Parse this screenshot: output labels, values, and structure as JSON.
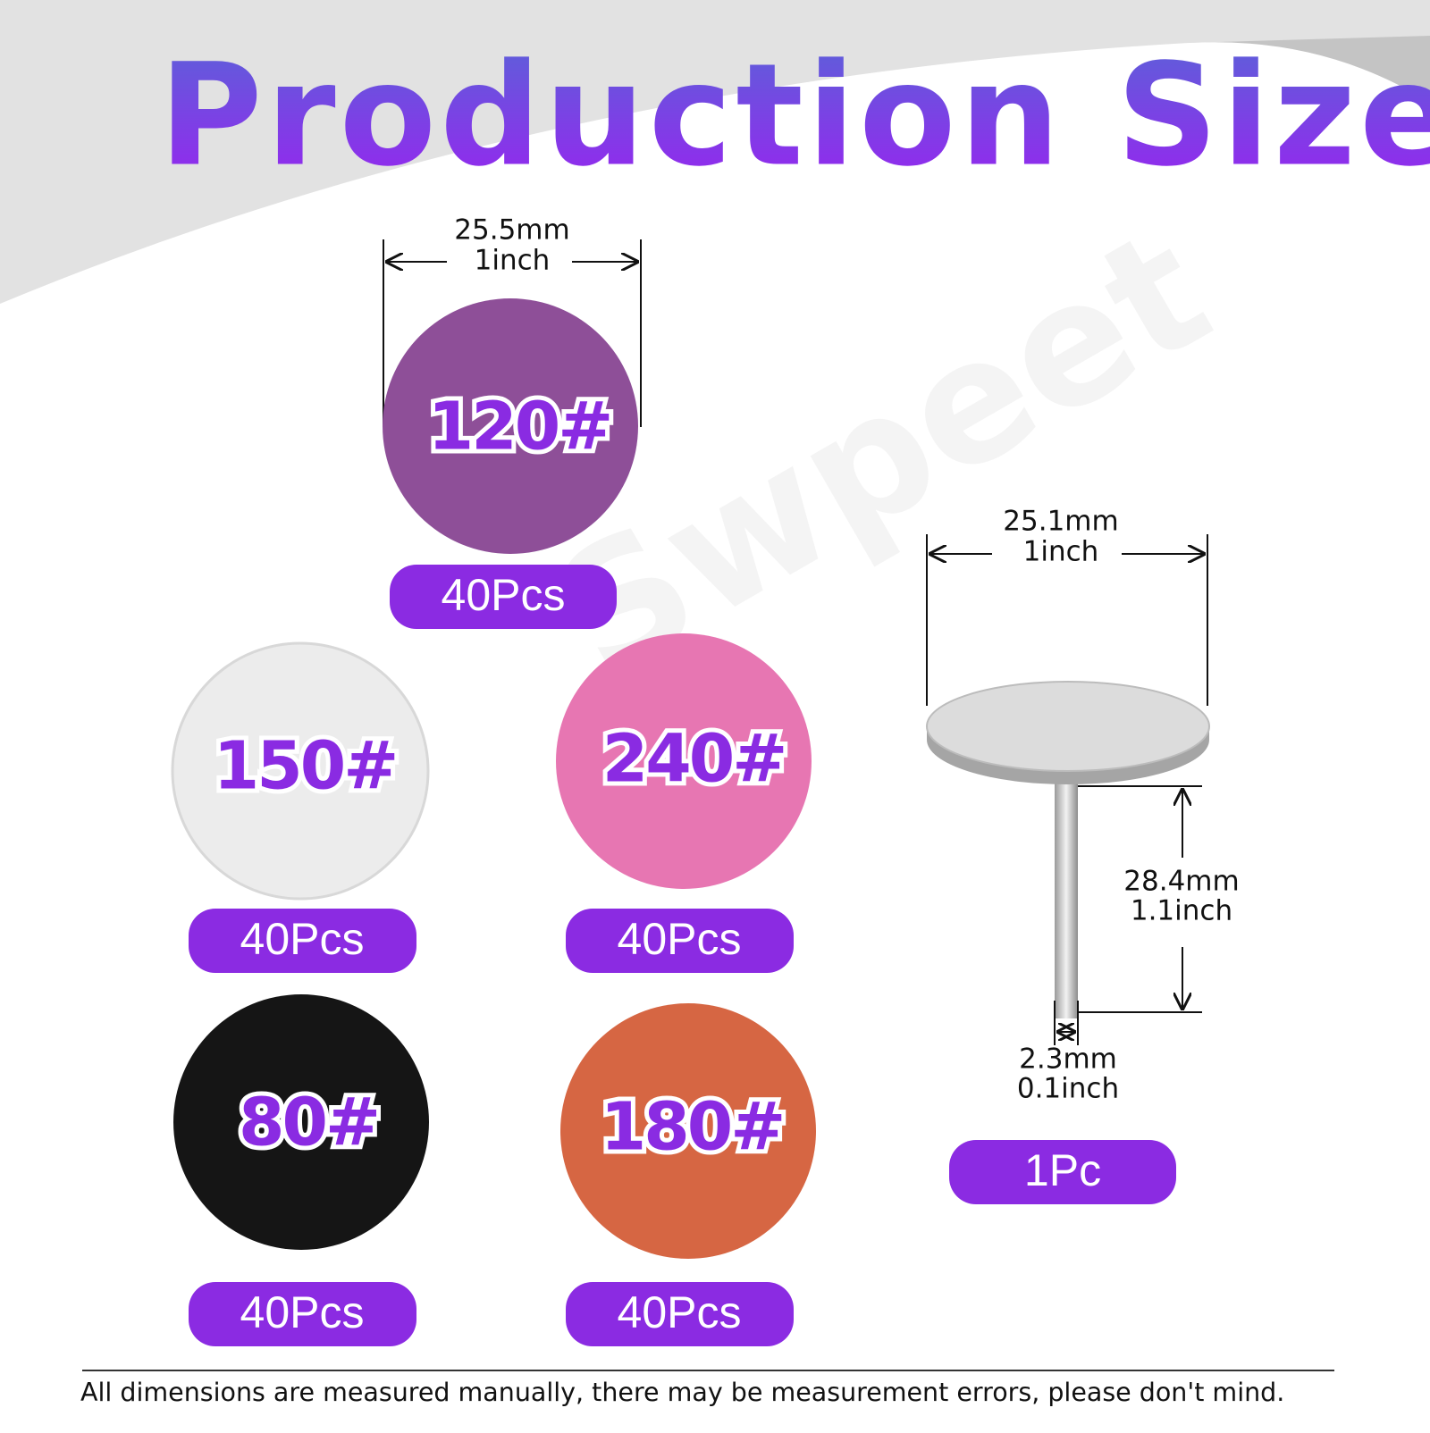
{
  "title": "Production Size",
  "watermark": "Swpeet",
  "pad_size": {
    "mm": "25.5mm",
    "inch": "1inch"
  },
  "pads": [
    {
      "grit": "120#",
      "quantity": "40Pcs"
    },
    {
      "grit": "150#",
      "quantity": "40Pcs"
    },
    {
      "grit": "240#",
      "quantity": "40Pcs"
    },
    {
      "grit": "80#",
      "quantity": "40Pcs"
    },
    {
      "grit": "180#",
      "quantity": "40Pcs"
    }
  ],
  "mandrel": {
    "head": {
      "mm": "25.1mm",
      "inch": "1inch"
    },
    "length": {
      "mm": "28.4mm",
      "inch": "1.1inch"
    },
    "shaft": {
      "mm": "2.3mm",
      "inch": "0.1inch"
    },
    "quantity": "1Pc"
  },
  "footer": "All dimensions are measured manually, there may be measurement errors, please don't mind."
}
